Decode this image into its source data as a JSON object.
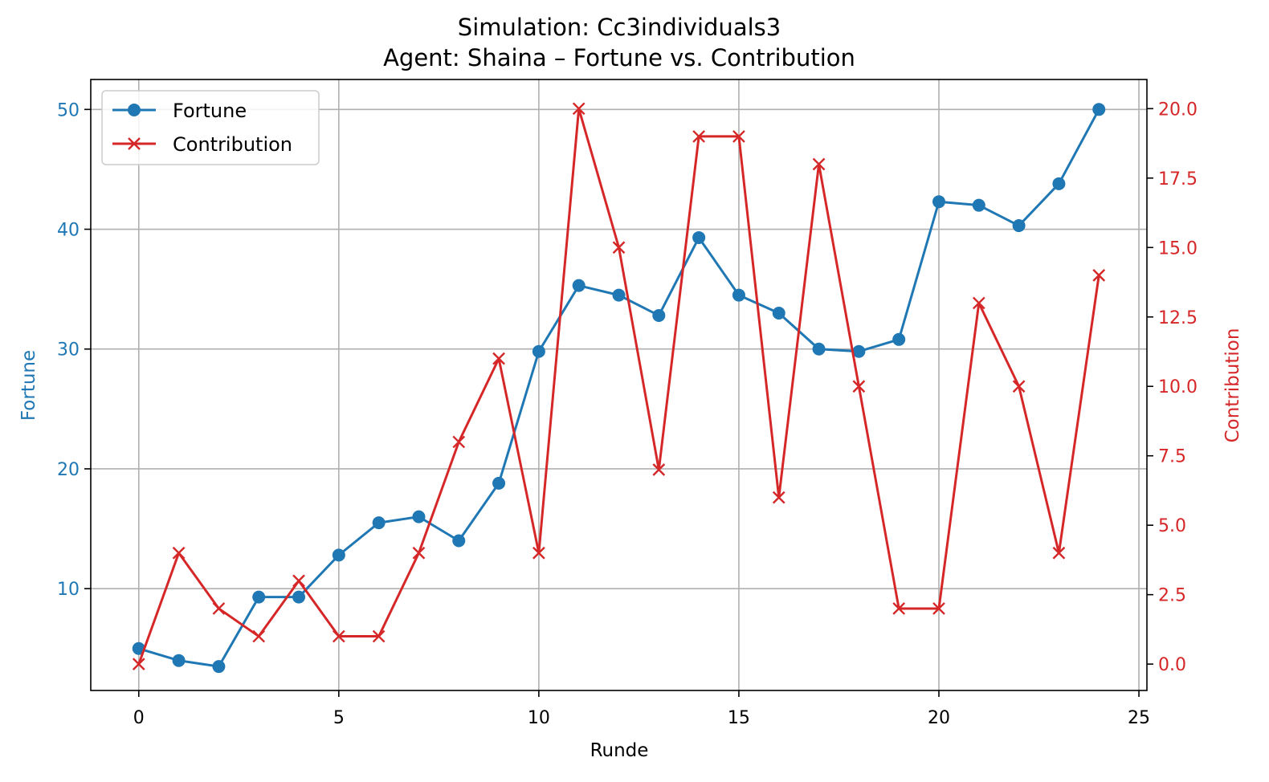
{
  "chart_data": {
    "type": "line",
    "title": "Simulation: Cc3individuals3",
    "subtitle": "Agent: Shaina – Fortune vs. Contribution",
    "xlabel": "Runde",
    "ylabel_left": "Fortune",
    "ylabel_right": "Contribution",
    "xlim": [
      -1.2,
      25.2
    ],
    "ylim_left": [
      1.5,
      52.5
    ],
    "ylim_right": [
      -0.95,
      21.05
    ],
    "x_ticks": [
      0,
      5,
      10,
      15,
      20,
      25
    ],
    "y_left_ticks": [
      10,
      20,
      30,
      40,
      50
    ],
    "y_right_ticks": [
      0.0,
      2.5,
      5.0,
      7.5,
      10.0,
      12.5,
      15.0,
      17.5,
      20.0
    ],
    "grid": true,
    "legend_position": "top-left",
    "x": [
      0,
      1,
      2,
      3,
      4,
      5,
      6,
      7,
      8,
      9,
      10,
      11,
      12,
      13,
      14,
      15,
      16,
      17,
      18,
      19,
      20,
      21,
      22,
      23,
      24
    ],
    "series": [
      {
        "name": "Fortune",
        "axis": "left",
        "color": "#1f77b4",
        "marker": "circle",
        "values": [
          5.0,
          4.0,
          3.5,
          9.3,
          9.3,
          12.8,
          15.5,
          16.0,
          14.0,
          18.8,
          29.8,
          35.3,
          34.5,
          32.8,
          39.3,
          34.5,
          33.0,
          30.0,
          29.8,
          30.8,
          42.3,
          42.0,
          40.3,
          43.8,
          50.0
        ]
      },
      {
        "name": "Contribution",
        "axis": "right",
        "color": "#d62728",
        "marker": "x",
        "values": [
          0,
          4,
          2,
          1,
          3,
          1,
          1,
          4,
          8,
          11,
          4,
          20,
          15,
          7,
          19,
          19,
          6,
          18,
          10,
          2,
          2,
          13,
          10,
          4,
          14
        ]
      }
    ]
  }
}
